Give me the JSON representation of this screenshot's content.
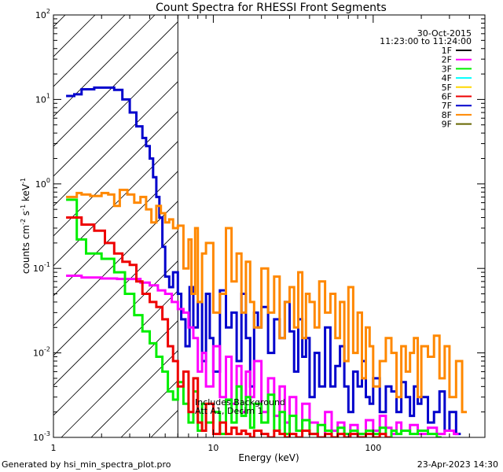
{
  "chart_data": {
    "type": "line",
    "title": "Count Spectra for RHESSI Front Segments",
    "xlabel": "Energy (keV)",
    "ylabel_parts": [
      "counts cm",
      "-2",
      " s",
      "-1",
      " keV",
      "-1"
    ],
    "xscale": "log",
    "yscale": "log",
    "xlim": [
      1.0,
      500.0
    ],
    "ylim": [
      0.001,
      100.0
    ],
    "x_ticks": [
      {
        "value": 1,
        "label": "1"
      },
      {
        "value": 10,
        "label": "10"
      },
      {
        "value": 100,
        "label": "100"
      }
    ],
    "y_ticks": [
      {
        "value": 0.001,
        "base": "10",
        "exp": "-3"
      },
      {
        "value": 0.01,
        "base": "10",
        "exp": "-2"
      },
      {
        "value": 0.1,
        "base": "10",
        "exp": "-1"
      },
      {
        "value": 1,
        "base": "10",
        "exp": "0"
      },
      {
        "value": 10,
        "base": "10",
        "exp": "1"
      },
      {
        "value": 100,
        "base": "10",
        "exp": "2"
      }
    ],
    "date": "30-Oct-2015",
    "time_range": "11:23:00 to 11:24:00",
    "hatch_region_xmax": 6.0,
    "annotation_lines": [
      "Includes Background",
      "Att A1, Decim 1"
    ],
    "legend": [
      {
        "name": "1F",
        "color": "#000000"
      },
      {
        "name": "2F",
        "color": "#ff00ff"
      },
      {
        "name": "3F",
        "color": "#00ee00"
      },
      {
        "name": "4F",
        "color": "#00ffff"
      },
      {
        "name": "5F",
        "color": "#ffd700"
      },
      {
        "name": "6F",
        "color": "#ee0000"
      },
      {
        "name": "7F",
        "color": "#0000cc"
      },
      {
        "name": "8F",
        "color": "#ff8800"
      },
      {
        "name": "9F",
        "color": "#666600"
      }
    ],
    "series": [
      {
        "name": "7F",
        "color": "#0000cc",
        "width": 3,
        "x": [
          1.2,
          1.35,
          1.5,
          1.8,
          2.0,
          2.4,
          2.7,
          3.0,
          3.3,
          3.6,
          3.8,
          4.0,
          4.2,
          4.4,
          4.6,
          4.8,
          5.0,
          5.3,
          5.6,
          6.0,
          6.3,
          6.7,
          7.1,
          7.5,
          8.0,
          8.5,
          9.0,
          9.5,
          10,
          11,
          12,
          13,
          14,
          15,
          16,
          17,
          18,
          19,
          20,
          22,
          24,
          26,
          28,
          30,
          32,
          34,
          36,
          38,
          40,
          43,
          46,
          50,
          54,
          58,
          62,
          66,
          70,
          75,
          80,
          85,
          90,
          95,
          100,
          110,
          120,
          130,
          140,
          150,
          160,
          170,
          180,
          190,
          200,
          220,
          240,
          260,
          280,
          300,
          330
        ],
        "y": [
          11,
          11.5,
          13.2,
          13.8,
          13.8,
          13,
          10,
          7,
          4.8,
          3.5,
          2.8,
          2,
          1.2,
          0.7,
          0.4,
          0.18,
          0.08,
          0.06,
          0.09,
          0.05,
          0.025,
          0.012,
          0.06,
          0.02,
          0.04,
          0.008,
          0.05,
          0.015,
          0.006,
          0.055,
          0.02,
          0.03,
          0.008,
          0.05,
          0.015,
          0.004,
          0.03,
          0.02,
          0.035,
          0.01,
          0.025,
          0.015,
          0.04,
          0.018,
          0.006,
          0.025,
          0.009,
          0.015,
          0.003,
          0.01,
          0.004,
          0.02,
          0.004,
          0.007,
          0.012,
          0.004,
          0.002,
          0.006,
          0.004,
          0.008,
          0.003,
          0.0025,
          0.005,
          0.002,
          0.004,
          0.0035,
          0.002,
          0.0045,
          0.003,
          0.0018,
          0.004,
          0.0025,
          0.003,
          0.0015,
          0.002,
          0.0035,
          0.0012,
          0.002,
          0.0011
        ]
      },
      {
        "name": "8F",
        "color": "#ff8800",
        "width": 3,
        "x": [
          1.2,
          1.4,
          1.5,
          1.7,
          2.0,
          2.2,
          2.4,
          2.6,
          2.9,
          3.2,
          3.5,
          3.8,
          4.1,
          4.4,
          4.7,
          5.0,
          5.3,
          5.6,
          6.0,
          6.5,
          7.0,
          7.3,
          7.7,
          8.0,
          8.5,
          9.0,
          10,
          11,
          12,
          13,
          14,
          15,
          16,
          17,
          18,
          20,
          22,
          24,
          26,
          28,
          30,
          32,
          34,
          36,
          38,
          40,
          43,
          46,
          50,
          54,
          58,
          62,
          66,
          70,
          75,
          80,
          85,
          90,
          95,
          100,
          110,
          120,
          130,
          140,
          150,
          160,
          170,
          180,
          190,
          200,
          220,
          240,
          260,
          280,
          300,
          330,
          360
        ],
        "y": [
          0.7,
          0.78,
          0.75,
          0.72,
          0.78,
          0.75,
          0.55,
          0.85,
          0.75,
          0.6,
          0.7,
          0.5,
          0.35,
          0.55,
          0.45,
          0.35,
          0.38,
          0.3,
          0.32,
          0.1,
          0.22,
          0.05,
          0.3,
          0.04,
          0.15,
          0.2,
          0.03,
          0.05,
          0.3,
          0.07,
          0.15,
          0.03,
          0.12,
          0.04,
          0.02,
          0.1,
          0.03,
          0.08,
          0.015,
          0.04,
          0.06,
          0.02,
          0.09,
          0.015,
          0.05,
          0.04,
          0.02,
          0.07,
          0.03,
          0.05,
          0.015,
          0.04,
          0.008,
          0.06,
          0.01,
          0.03,
          0.005,
          0.02,
          0.012,
          0.004,
          0.008,
          0.015,
          0.01,
          0.003,
          0.012,
          0.006,
          0.01,
          0.015,
          0.003,
          0.012,
          0.009,
          0.016,
          0.005,
          0.012,
          0.003,
          0.008,
          0.002
        ]
      },
      {
        "name": "2F",
        "color": "#ff00ff",
        "width": 3,
        "x": [
          1.2,
          1.5,
          2.0,
          2.5,
          3.0,
          3.5,
          4.0,
          4.5,
          5.0,
          5.5,
          6.0,
          6.5,
          7.0,
          7.5,
          8.0,
          8.5,
          9.0,
          10,
          11,
          12,
          13,
          14,
          15,
          16,
          17,
          18,
          20,
          22,
          24,
          26,
          28,
          30,
          33,
          36,
          40,
          45,
          50,
          55,
          60,
          66,
          72,
          80,
          90,
          100,
          110,
          120,
          130,
          140,
          150,
          170,
          190,
          220,
          250,
          280,
          320
        ],
        "y": [
          0.082,
          0.078,
          0.076,
          0.075,
          0.075,
          0.068,
          0.063,
          0.055,
          0.05,
          0.04,
          0.033,
          0.03,
          0.02,
          0.015,
          0.006,
          0.01,
          0.004,
          0.012,
          0.003,
          0.009,
          0.0025,
          0.007,
          0.002,
          0.006,
          0.003,
          0.008,
          0.002,
          0.005,
          0.0018,
          0.004,
          0.0015,
          0.003,
          0.0012,
          0.0025,
          0.0015,
          0.001,
          0.002,
          0.0012,
          0.0015,
          0.001,
          0.0014,
          0.0011,
          0.0016,
          0.0012,
          0.0018,
          0.0013,
          0.0011,
          0.0015,
          0.0012,
          0.0014,
          0.0011,
          0.0013,
          0.0011,
          0.0012,
          0.0011
        ]
      },
      {
        "name": "3F",
        "color": "#00ee00",
        "width": 3,
        "x": [
          1.2,
          1.4,
          1.6,
          2.0,
          2.4,
          2.8,
          3.2,
          3.6,
          4.0,
          4.4,
          4.8,
          5.2,
          5.6,
          6.0,
          6.5,
          7.0,
          7.5,
          8.0,
          8.5,
          9.0,
          10,
          11,
          12,
          13,
          14,
          15,
          16,
          17,
          18,
          20,
          22,
          24,
          26,
          28,
          30,
          33,
          36,
          40,
          45,
          50,
          55,
          60,
          66,
          72,
          80,
          90,
          100,
          110,
          120,
          130,
          140,
          150,
          170,
          190,
          220,
          250
        ],
        "y": [
          0.65,
          0.22,
          0.15,
          0.13,
          0.09,
          0.05,
          0.028,
          0.018,
          0.013,
          0.009,
          0.006,
          0.0035,
          0.0028,
          0.0045,
          0.0025,
          0.0015,
          0.0035,
          0.0012,
          0.0025,
          0.0015,
          0.002,
          0.0011,
          0.0028,
          0.0015,
          0.004,
          0.0018,
          0.003,
          0.0013,
          0.0025,
          0.0015,
          0.0032,
          0.0012,
          0.002,
          0.0011,
          0.0018,
          0.0012,
          0.0016,
          0.0011,
          0.0014,
          0.0012,
          0.001,
          0.0013,
          0.0011,
          0.0012,
          0.0011,
          0.0012,
          0.0011,
          0.0013,
          0.001,
          0.0012,
          0.0011,
          0.0012,
          0.0011,
          0.0012,
          0.0011,
          0.001
        ]
      },
      {
        "name": "6F",
        "color": "#ee0000",
        "width": 3,
        "x": [
          1.2,
          1.5,
          1.8,
          2.1,
          2.4,
          2.7,
          3.0,
          3.3,
          3.6,
          4.0,
          4.4,
          4.8,
          5.2,
          5.6,
          6.0,
          6.5,
          7.0,
          7.5,
          8.0,
          8.5,
          9.0,
          10,
          11,
          12,
          13,
          14,
          15,
          16,
          17,
          18,
          20,
          22,
          24,
          26,
          28,
          30,
          33,
          36,
          40,
          45,
          50,
          55,
          60,
          66,
          72,
          80,
          90,
          100,
          110,
          120
        ],
        "y": [
          0.4,
          0.33,
          0.28,
          0.2,
          0.15,
          0.12,
          0.11,
          0.07,
          0.05,
          0.04,
          0.035,
          0.025,
          0.012,
          0.008,
          0.004,
          0.006,
          0.002,
          0.005,
          0.0015,
          0.0012,
          0.0025,
          0.0011,
          0.0015,
          0.0011,
          0.0013,
          0.0011,
          0.0012,
          0.0011,
          0.001,
          0.0012,
          0.0011,
          0.001,
          0.0012,
          0.0011,
          0.001,
          0.0011,
          0.001,
          0.0012,
          0.0011,
          0.001,
          0.0011,
          0.001,
          0.0011,
          0.001,
          0.0011,
          0.001,
          0.0011,
          0.001,
          0.0011,
          0.001
        ]
      }
    ],
    "footer_left": "Generated by hsi_min_spectra_plot.pro",
    "footer_right": "23-Apr-2023 14:30"
  }
}
